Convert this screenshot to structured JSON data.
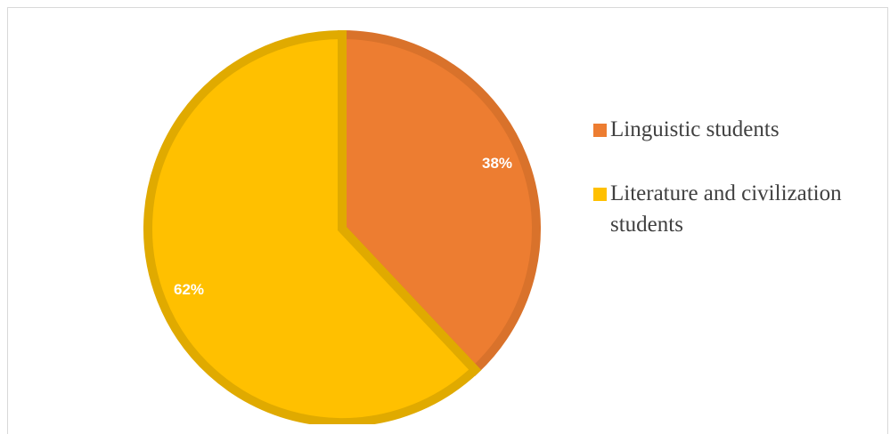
{
  "chart_data": {
    "type": "pie",
    "slices": [
      {
        "label": "Linguistic students",
        "value": 38,
        "display": "38%",
        "color": "#ED7D31",
        "edge": "#D9722B"
      },
      {
        "label": "Literature and civilization students",
        "value": 62,
        "display": "62%",
        "color": "#FFC000",
        "edge": "#E0AA00"
      }
    ],
    "legend_position": "right"
  }
}
